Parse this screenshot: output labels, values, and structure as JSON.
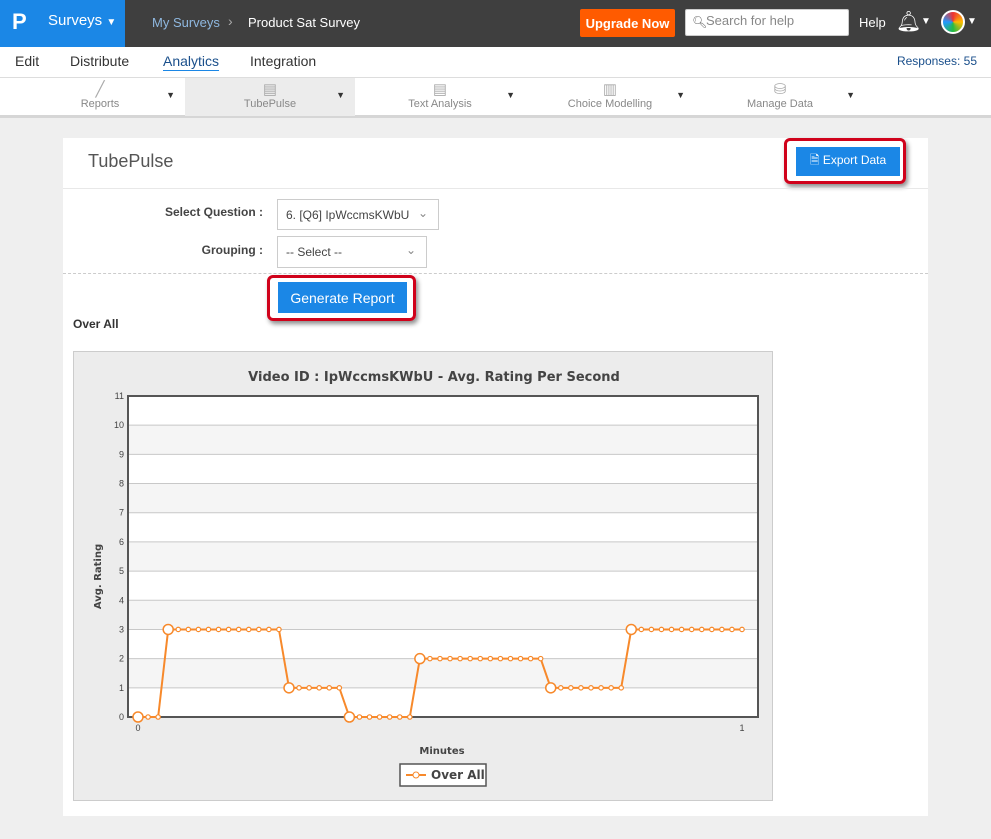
{
  "topbar": {
    "logo": "P",
    "product": "Surveys",
    "breadcrumb": [
      "My Surveys",
      "Product Sat Survey"
    ],
    "upgrade": "Upgrade Now",
    "search_placeholder": "Search for help",
    "help": "Help"
  },
  "nav": {
    "items": [
      "Edit",
      "Distribute",
      "Analytics",
      "Integration"
    ],
    "active": "Analytics",
    "responses": "Responses: 55"
  },
  "subnav": {
    "items": [
      "Reports",
      "TubePulse",
      "Text Analysis",
      "Choice Modelling",
      "Manage Data"
    ],
    "active": "TubePulse"
  },
  "panel": {
    "title": "TubePulse",
    "export": "Export Data",
    "select_question_label": "Select Question :",
    "select_question_value": "6. [Q6] IpWccmsKWbU",
    "grouping_label": "Grouping :",
    "grouping_value": "-- Select --",
    "generate": "Generate Report",
    "section": "Over All"
  },
  "colors": {
    "accent": "#1b87e6",
    "upgrade": "#ff5b00",
    "series": "#f7892b",
    "highlight": "#d0021b"
  },
  "chart_data": {
    "type": "line",
    "title": "Video ID : IpWccmsKWbU - Avg. Rating Per Second",
    "xlabel": "Minutes",
    "ylabel": "Avg. Rating",
    "xlim": [
      0,
      1
    ],
    "ylim": [
      0,
      11
    ],
    "xticks": [
      "0",
      "1"
    ],
    "yticks": [
      "0",
      "1",
      "2",
      "3",
      "4",
      "5",
      "6",
      "7",
      "8",
      "9",
      "10",
      "11"
    ],
    "grid": true,
    "legend": "bottom",
    "series": [
      {
        "name": "Over All",
        "values": [
          0,
          0,
          0,
          3,
          3,
          3,
          3,
          3,
          3,
          3,
          3,
          3,
          3,
          3,
          3,
          1,
          1,
          1,
          1,
          1,
          1,
          0,
          0,
          0,
          0,
          0,
          0,
          0,
          2,
          2,
          2,
          2,
          2,
          2,
          2,
          2,
          2,
          2,
          2,
          2,
          2,
          1,
          1,
          1,
          1,
          1,
          1,
          1,
          1,
          3,
          3,
          3,
          3,
          3,
          3,
          3,
          3,
          3,
          3,
          3,
          3
        ]
      }
    ]
  }
}
